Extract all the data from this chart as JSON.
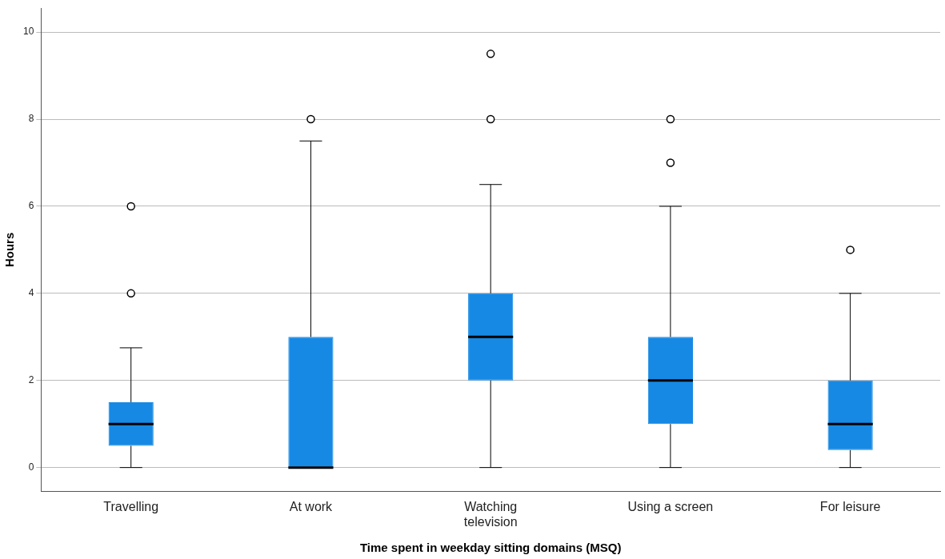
{
  "chart_data": {
    "type": "box",
    "xlabel": "Time spent in weekday sitting domains (MSQ)",
    "ylabel": "Hours",
    "categories": [
      "Travelling",
      "At work",
      "Watching television",
      "Using a screen",
      "For leisure"
    ],
    "color": "#1689e4",
    "boxes": [
      {
        "low": 0,
        "q1": 0.5,
        "median": 1,
        "q3": 1.5,
        "high": 2.75,
        "outliers": [
          4,
          6
        ]
      },
      {
        "low": 0,
        "q1": 0,
        "median": 0,
        "q3": 3,
        "high": 7.5,
        "outliers": [
          8
        ]
      },
      {
        "low": 0,
        "q1": 2,
        "median": 3,
        "q3": 4,
        "high": 6.5,
        "outliers": [
          8,
          9.5
        ]
      },
      {
        "low": 0,
        "q1": 1,
        "median": 2,
        "q3": 3,
        "high": 6,
        "outliers": [
          7,
          8
        ]
      },
      {
        "low": 0,
        "q1": 0.4,
        "median": 1,
        "q3": 2,
        "high": 4,
        "outliers": [
          5
        ]
      }
    ],
    "ylim": [
      -0.55,
      10.55
    ],
    "yticks": [
      0,
      2,
      4,
      6,
      8,
      10
    ],
    "grid": "y"
  }
}
